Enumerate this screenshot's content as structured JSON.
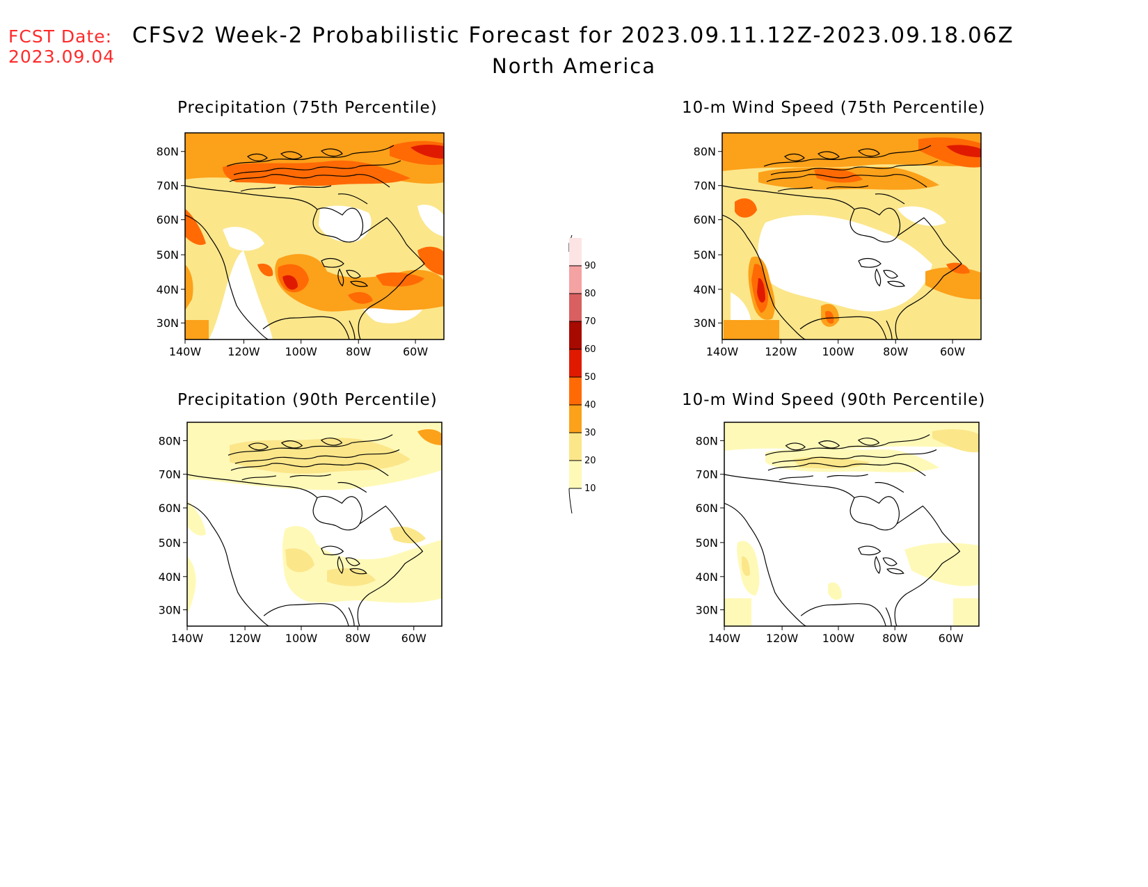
{
  "header": {
    "fcst_label": "FCST Date:",
    "fcst_date": "2023.09.04",
    "title": "CFSv2 Week-2 Probabilistic Forecast for 2023.09.11.12Z-2023.09.18.06Z",
    "subtitle": "North America"
  },
  "panels": [
    {
      "id": "precip75",
      "title": "Precipitation (75th Percentile)"
    },
    {
      "id": "wind75",
      "title": "10-m Wind Speed (75th Percentile)"
    },
    {
      "id": "precip90",
      "title": "Precipitation (90th Percentile)"
    },
    {
      "id": "wind90",
      "title": "10-m Wind Speed (90th Percentile)"
    }
  ],
  "axes": {
    "lat_labels": [
      "80N",
      "70N",
      "60N",
      "50N",
      "40N",
      "30N"
    ],
    "lon_labels": [
      "140W",
      "120W",
      "100W",
      "80W",
      "60W"
    ]
  },
  "colorbar": {
    "levels": [
      "10",
      "20",
      "30",
      "40",
      "50",
      "60",
      "70",
      "80",
      "90"
    ],
    "colors": [
      "#fff9b8",
      "#fbe68a",
      "#fca11a",
      "#ff6a05",
      "#e01a00",
      "#a60a00",
      "#d86060",
      "#f5a2a2",
      "#fde4e4"
    ]
  }
}
